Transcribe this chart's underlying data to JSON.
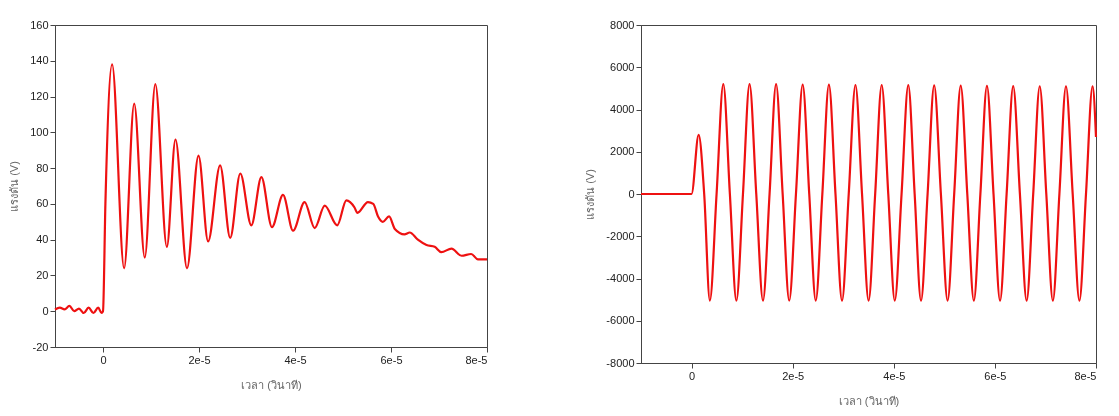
{
  "chart_data": [
    {
      "type": "line",
      "xlabel": "เวลา (วินาที)",
      "ylabel": "แรงดัน (V)",
      "xlim": [
        -1e-05,
        8e-05
      ],
      "ylim": [
        -20,
        160
      ],
      "xticks": [
        0,
        {
          "value": 2e-05,
          "label": "2e-5"
        },
        {
          "value": 4e-05,
          "label": "4e-5"
        },
        {
          "value": 6e-05,
          "label": "6e-5"
        },
        {
          "value": 8e-05,
          "label": "8e-5"
        }
      ],
      "yticks": [
        -20,
        0,
        20,
        40,
        60,
        80,
        100,
        120,
        140,
        160
      ],
      "series": [
        {
          "color": "#ee1111",
          "x": [
            -1e-05,
            -9e-06,
            -8e-06,
            -7e-06,
            -6e-06,
            -5e-06,
            -4e-06,
            -3e-06,
            -2e-06,
            -1e-06,
            -3e-07,
            0,
            5e-07,
            1.9e-06,
            4.4e-06,
            6.5e-06,
            8.7e-06,
            1.09e-05,
            1.33e-05,
            1.51e-05,
            1.75e-05,
            1.99e-05,
            2.19e-05,
            2.44e-05,
            2.65e-05,
            2.86e-05,
            3.09e-05,
            3.3e-05,
            3.52e-05,
            3.75e-05,
            3.96e-05,
            4.2e-05,
            4.41e-05,
            4.62e-05,
            4.88e-05,
            5.07e-05,
            5.24e-05,
            5.3e-05,
            5.52e-05,
            5.63e-05,
            5.73e-05,
            5.83e-05,
            5.96e-05,
            6.08e-05,
            6.28e-05,
            6.39e-05,
            6.56e-05,
            6.74e-05,
            6.91e-05,
            7.05e-05,
            7.26e-05,
            7.47e-05,
            7.67e-05,
            7.81e-05,
            8e-05
          ],
          "values": [
            1,
            2,
            1,
            3,
            0,
            1.5,
            -1,
            2,
            -1,
            2,
            -1,
            0,
            60,
            138,
            24,
            116,
            30,
            127,
            36,
            96,
            24,
            87,
            39,
            81.5,
            41,
            77,
            48,
            75,
            47,
            65,
            45,
            61,
            46.5,
            59,
            48,
            62,
            58,
            55,
            61,
            60,
            53,
            50,
            53,
            46,
            43,
            44,
            40,
            37,
            36,
            33,
            35,
            31,
            32,
            29,
            29
          ]
        }
      ]
    },
    {
      "type": "line",
      "xlabel": "เวลา (วินาที)",
      "ylabel": "แรงดัน (V)",
      "xlim": [
        -1e-05,
        8e-05
      ],
      "ylim": [
        -8000,
        8000
      ],
      "xticks": [
        0,
        {
          "value": 2e-05,
          "label": "2e-5"
        },
        {
          "value": 4e-05,
          "label": "4e-5"
        },
        {
          "value": 6e-05,
          "label": "6e-5"
        },
        {
          "value": 8e-05,
          "label": "8e-5"
        }
      ],
      "yticks": [
        -8000,
        -6000,
        -4000,
        -2000,
        0,
        2000,
        4000,
        6000,
        8000
      ],
      "series": [
        {
          "color": "#ee1111",
          "x": [
            -1e-05,
            0,
            1.4e-06,
            2.5e-06,
            3.62e-06,
            4.95e-06,
            6.28e-06,
            7.58e-06,
            8.87e-06,
            1.017e-05,
            1.147e-05,
            1.28e-05,
            1.413e-05,
            1.543e-05,
            1.672e-05,
            1.802e-05,
            1.932e-05,
            2.065e-05,
            2.198e-05,
            2.328e-05,
            2.457e-05,
            2.587e-05,
            2.717e-05,
            2.847e-05,
            2.976e-05,
            3.109e-05,
            3.242e-05,
            3.372e-05,
            3.502e-05,
            3.632e-05,
            3.761e-05,
            3.891e-05,
            4.02e-05,
            4.154e-05,
            4.287e-05,
            4.413e-05,
            4.539e-05,
            4.669e-05,
            4.799e-05,
            4.932e-05,
            5.065e-05,
            5.195e-05,
            5.324e-05,
            5.454e-05,
            5.584e-05,
            5.713e-05,
            5.843e-05,
            5.973e-05,
            6.102e-05,
            6.232e-05,
            6.362e-05,
            6.495e-05,
            6.628e-05,
            6.758e-05,
            6.887e-05,
            7.017e-05,
            7.147e-05,
            7.276e-05,
            7.406e-05,
            7.539e-05,
            7.672e-05,
            7.802e-05,
            7.932e-05,
            8e-05
          ],
          "values": [
            0,
            0,
            2800,
            0,
            -5050,
            0,
            5200,
            0,
            -5050,
            0,
            5200,
            0,
            -5050,
            0,
            5200,
            0,
            -5050,
            0,
            5180,
            0,
            -5050,
            0,
            5180,
            0,
            -5050,
            0,
            5160,
            0,
            -5050,
            0,
            5160,
            0,
            -5050,
            0,
            5150,
            0,
            -5050,
            0,
            5140,
            0,
            -5050,
            0,
            5130,
            0,
            -5050,
            0,
            5120,
            0,
            -5050,
            0,
            5110,
            0,
            -5050,
            0,
            5100,
            0,
            -5050,
            0,
            5100,
            0,
            -5050,
            0,
            5100,
            2700
          ]
        }
      ]
    }
  ]
}
